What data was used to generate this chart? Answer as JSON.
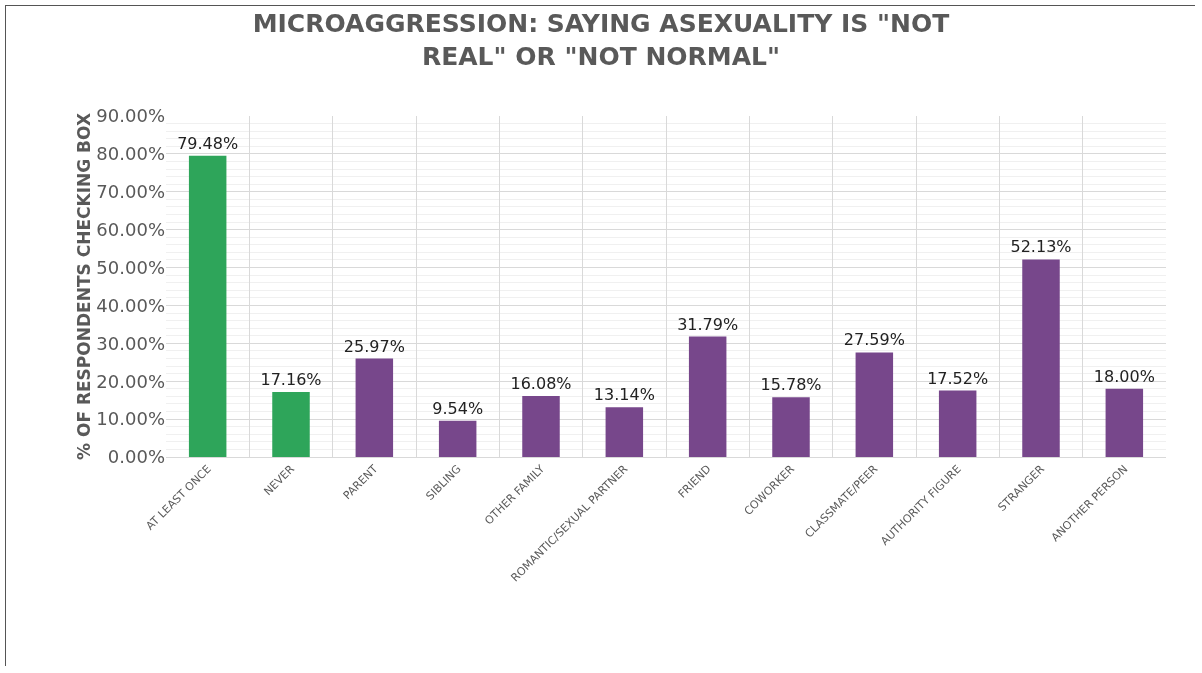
{
  "chart_data": {
    "type": "bar",
    "title": "MICROAGGRESSION: SAYING ASEXUALITY IS \"NOT REAL\" OR \"NOT NORMAL\"",
    "ylabel": "% OF RESPONDENTS CHECKING BOX",
    "categories": [
      "AT LEAST ONCE",
      "NEVER",
      "PARENT",
      "SIBLING",
      "OTHER FAMILY",
      "ROMANTIC/SEXUAL PARTNER",
      "FRIEND",
      "COWORKER",
      "CLASSMATE/PEER",
      "AUTHORITY FIGURE",
      "STRANGER",
      "ANOTHER PERSON"
    ],
    "values": [
      79.48,
      17.16,
      25.97,
      9.54,
      16.08,
      13.14,
      31.79,
      15.78,
      27.59,
      17.52,
      52.13,
      18.0
    ],
    "colors": [
      "#2ea55a",
      "#2ea55a",
      "#77478b",
      "#77478b",
      "#77478b",
      "#77478b",
      "#77478b",
      "#77478b",
      "#77478b",
      "#77478b",
      "#77478b",
      "#77478b"
    ],
    "value_labels": [
      "79.48%",
      "17.16%",
      "25.97%",
      "9.54%",
      "16.08%",
      "13.14%",
      "31.79%",
      "15.78%",
      "27.59%",
      "17.52%",
      "52.13%",
      "18.00%"
    ],
    "ylim": [
      0,
      90
    ],
    "yticks": [
      {
        "value": 0,
        "label": "0.00%"
      },
      {
        "value": 10,
        "label": "10.00%"
      },
      {
        "value": 20,
        "label": "20.00%"
      },
      {
        "value": 30,
        "label": "30.00%"
      },
      {
        "value": 40,
        "label": "40.00%"
      },
      {
        "value": 50,
        "label": "50.00%"
      },
      {
        "value": 60,
        "label": "60.00%"
      },
      {
        "value": 70,
        "label": "70.00%"
      },
      {
        "value": 80,
        "label": "80.00%"
      },
      {
        "value": 90,
        "label": "90.00%"
      }
    ],
    "grid": true
  }
}
